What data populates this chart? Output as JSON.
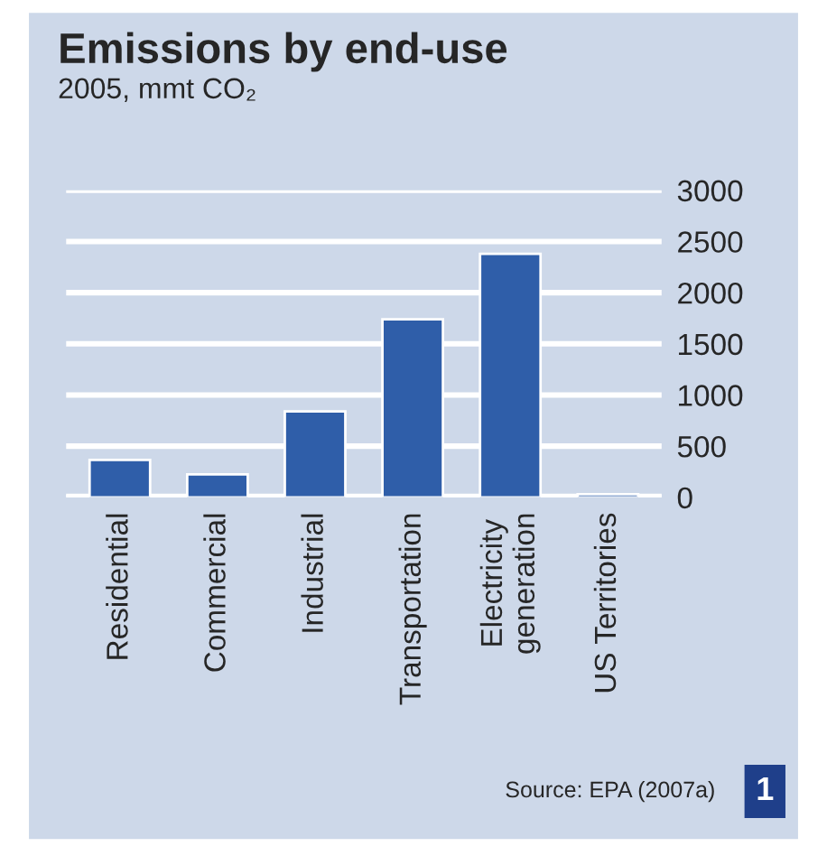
{
  "chart_data": {
    "type": "bar",
    "title": "Emissions by end-use",
    "subtitle": "2005, mmt CO₂",
    "categories": [
      "Residential",
      "Commercial",
      "Industrial",
      "Transportation",
      "Electricity\ngeneration",
      "US Territories"
    ],
    "values": [
      365,
      225,
      840,
      1740,
      2380,
      30
    ],
    "color": "#2f5ea9",
    "ylim": [
      0,
      3000
    ],
    "yticks": [
      0,
      500,
      1000,
      1500,
      2000,
      2500,
      3000
    ],
    "grid": "y",
    "annotations": [
      "Source: EPA (2007a)",
      "1"
    ]
  }
}
